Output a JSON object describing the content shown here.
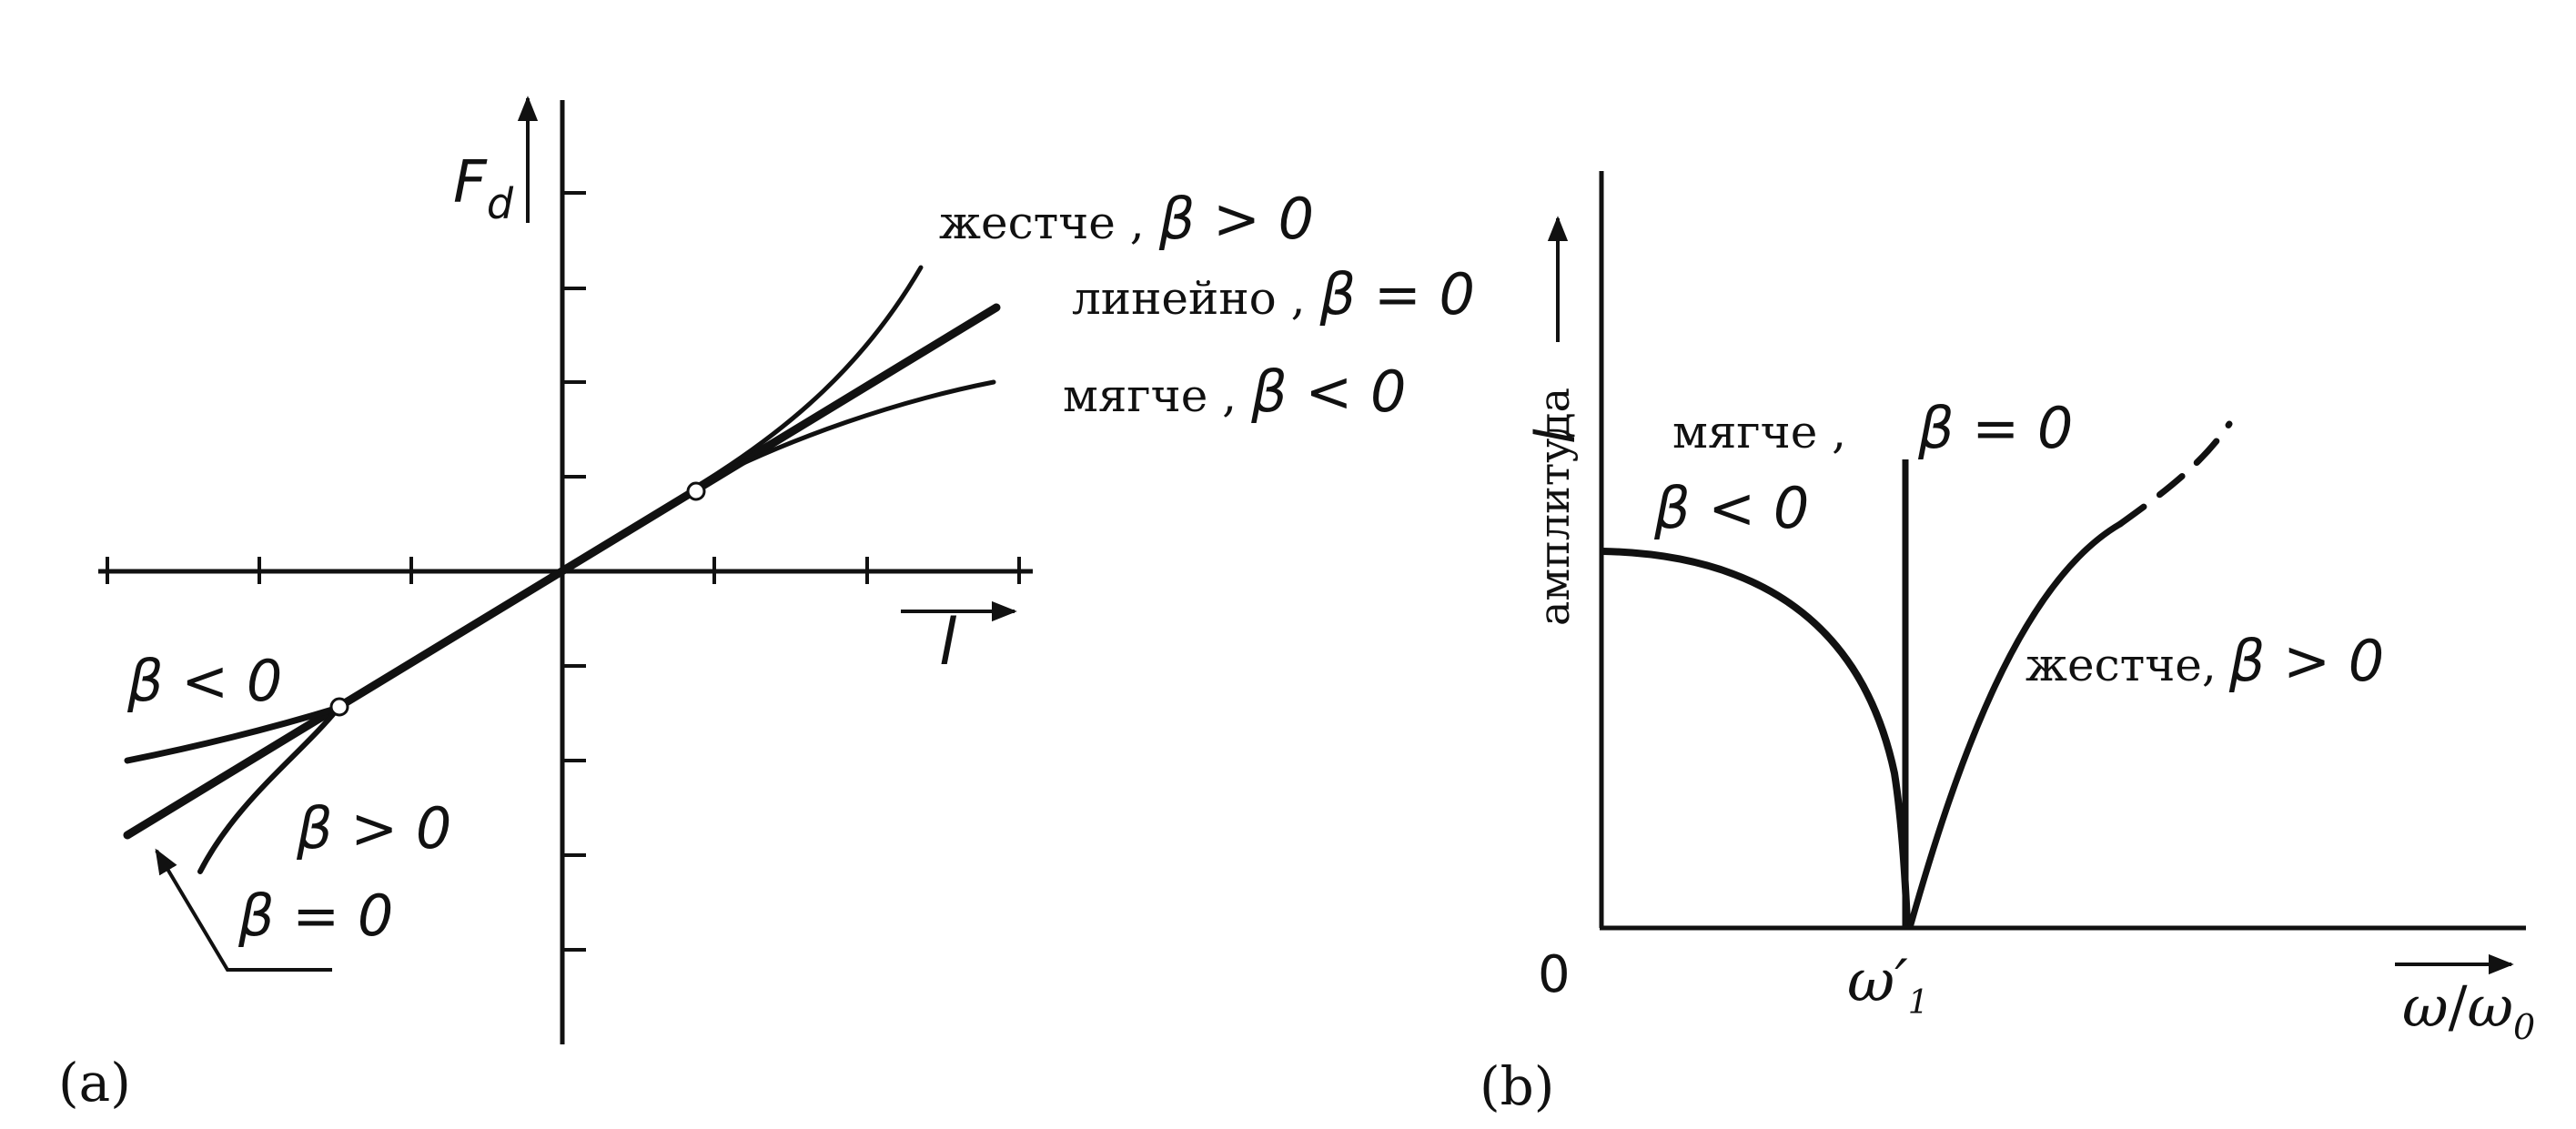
{
  "panel_a": {
    "label": "(a)",
    "y_axis_label": "F",
    "y_axis_sub": "d",
    "x_axis_label": "l",
    "curve_labels": {
      "stiffer": {
        "word": "жестче ,",
        "beta": "β > 0"
      },
      "linear": {
        "word": "линейно ,",
        "beta": "β = 0"
      },
      "softer": {
        "word": "мягче ,",
        "beta": "β < 0"
      }
    },
    "lower_labels": {
      "beta_neg": "β < 0",
      "beta_pos": "β > 0",
      "beta_zero": "β = 0"
    }
  },
  "panel_b": {
    "label": "(b)",
    "y_axis_word": "амплитуда",
    "y_axis_symbol": "l",
    "origin": "0",
    "x_tick": "ω′",
    "x_tick_sub": "1",
    "x_axis_num": "ω",
    "x_axis_den": "ω",
    "x_axis_den_sub": "0",
    "softer_word": "мягче ,",
    "softer_beta": "β < 0",
    "zero_beta": "β = 0",
    "stiffer_label": "жестче,",
    "stiffer_beta": "β > 0"
  },
  "colors": {
    "ink": "#111111",
    "background": "#ffffff"
  }
}
